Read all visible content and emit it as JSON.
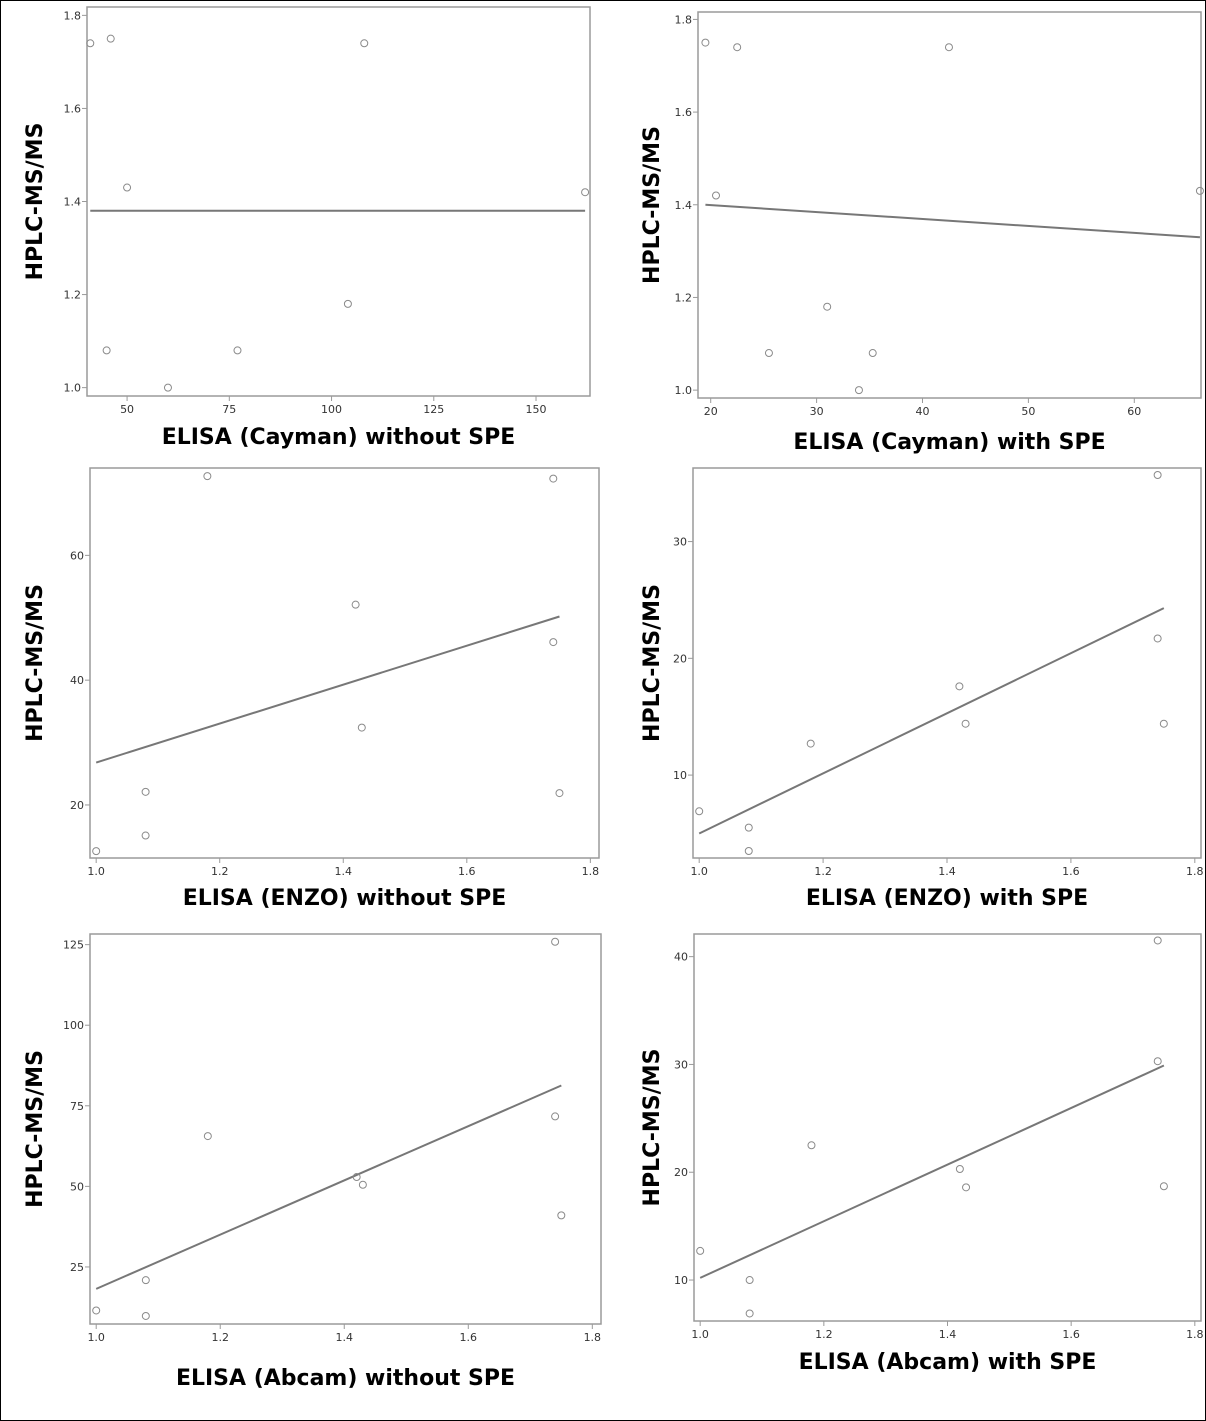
{
  "chart_data": [
    {
      "type": "scatter",
      "xlabel": "ELISA (Cayman) without SPE",
      "ylabel": "HPLC-MS/MS",
      "xlim": [
        40.2,
        163.2
      ],
      "ylim": [
        0.982,
        1.818
      ],
      "xticks": [
        "50",
        "75",
        "100",
        "125",
        "150"
      ],
      "xtick_values": [
        50,
        75,
        100,
        125,
        150
      ],
      "yticks": [
        "1.0",
        "1.2",
        "1.4",
        "1.6",
        "1.8"
      ],
      "ytick_values": [
        1.0,
        1.2,
        1.4,
        1.6,
        1.8
      ],
      "points": [
        [
          41,
          1.74
        ],
        [
          46,
          1.75
        ],
        [
          45,
          1.08
        ],
        [
          50,
          1.43
        ],
        [
          60,
          1.0
        ],
        [
          77,
          1.08
        ],
        [
          104,
          1.18
        ],
        [
          108,
          1.74
        ],
        [
          162,
          1.42
        ]
      ],
      "fit_line": [
        [
          41,
          1.38
        ],
        [
          162,
          1.38
        ]
      ],
      "grid": false
    },
    {
      "type": "scatter",
      "xlabel": "ELISA (Cayman) with SPE",
      "ylabel": "HPLC-MS/MS",
      "xlim": [
        18.8,
        66.3
      ],
      "ylim": [
        0.983,
        1.816
      ],
      "xticks": [
        "20",
        "30",
        "40",
        "50",
        "60"
      ],
      "xtick_values": [
        20,
        30,
        40,
        50,
        60
      ],
      "yticks": [
        "1.0",
        "1.2",
        "1.4",
        "1.6",
        "1.8"
      ],
      "ytick_values": [
        1.0,
        1.2,
        1.4,
        1.6,
        1.8
      ],
      "points": [
        [
          19.5,
          1.75
        ],
        [
          20.5,
          1.42
        ],
        [
          22.5,
          1.74
        ],
        [
          25.5,
          1.08
        ],
        [
          31,
          1.18
        ],
        [
          34,
          1.0
        ],
        [
          35.3,
          1.08
        ],
        [
          42.5,
          1.74
        ],
        [
          66.2,
          1.43
        ]
      ],
      "fit_line": [
        [
          19.5,
          1.4
        ],
        [
          66.2,
          1.33
        ]
      ],
      "grid": false
    },
    {
      "type": "scatter",
      "xlabel": "ELISA (ENZO) without SPE",
      "ylabel": "HPLC-MS/MS",
      "xlim": [
        0.99,
        1.814
      ],
      "ylim": [
        11.5,
        74
      ],
      "xticks": [
        "1.0",
        "1.2",
        "1.4",
        "1.6",
        "1.8"
      ],
      "xtick_values": [
        1.0,
        1.2,
        1.4,
        1.6,
        1.8
      ],
      "yticks": [
        "20",
        "40",
        "60"
      ],
      "ytick_values": [
        20,
        40,
        60
      ],
      "points": [
        [
          1.0,
          12.6
        ],
        [
          1.08,
          22.1
        ],
        [
          1.08,
          15.1
        ],
        [
          1.18,
          72.7
        ],
        [
          1.42,
          52.1
        ],
        [
          1.43,
          32.4
        ],
        [
          1.74,
          72.3
        ],
        [
          1.74,
          46.1
        ],
        [
          1.75,
          21.9
        ]
      ],
      "fit_line": [
        [
          1.0,
          26.8
        ],
        [
          1.75,
          50.2
        ]
      ],
      "grid": false
    },
    {
      "type": "scatter",
      "xlabel": "ELISA (ENZO) with SPE",
      "ylabel": "HPLC-MS/MS",
      "xlim": [
        0.99,
        1.81
      ],
      "ylim": [
        2.9,
        36.3
      ],
      "xticks": [
        "1.0",
        "1.2",
        "1.4",
        "1.6",
        "1.8"
      ],
      "xtick_values": [
        1.0,
        1.2,
        1.4,
        1.6,
        1.8
      ],
      "yticks": [
        "10",
        "20",
        "30"
      ],
      "ytick_values": [
        10,
        20,
        30
      ],
      "points": [
        [
          1.0,
          6.9
        ],
        [
          1.08,
          5.5
        ],
        [
          1.08,
          3.5
        ],
        [
          1.18,
          12.7
        ],
        [
          1.42,
          17.6
        ],
        [
          1.43,
          14.4
        ],
        [
          1.74,
          35.7
        ],
        [
          1.74,
          21.7
        ],
        [
          1.75,
          14.4
        ]
      ],
      "fit_line": [
        [
          1.0,
          5.0
        ],
        [
          1.75,
          24.3
        ]
      ],
      "grid": false
    },
    {
      "type": "scatter",
      "xlabel": "ELISA (Abcam) without SPE",
      "ylabel": "HPLC-MS/MS",
      "xlim": [
        0.99,
        1.814
      ],
      "ylim": [
        7.3,
        128.3
      ],
      "xticks": [
        "1.0",
        "1.2",
        "1.4",
        "1.6",
        "1.8"
      ],
      "xtick_values": [
        1.0,
        1.2,
        1.4,
        1.6,
        1.8
      ],
      "yticks": [
        "25",
        "50",
        "75",
        "100",
        "125"
      ],
      "ytick_values": [
        25,
        50,
        75,
        100,
        125
      ],
      "points": [
        [
          1.0,
          11.5
        ],
        [
          1.08,
          20.9
        ],
        [
          1.08,
          9.8
        ],
        [
          1.18,
          65.6
        ],
        [
          1.42,
          52.9
        ],
        [
          1.43,
          50.5
        ],
        [
          1.74,
          125.9
        ],
        [
          1.74,
          71.7
        ],
        [
          1.75,
          41.0
        ]
      ],
      "fit_line": [
        [
          1.0,
          18.2
        ],
        [
          1.75,
          81.3
        ]
      ],
      "grid": false
    },
    {
      "type": "scatter",
      "xlabel": "ELISA (Abcam) with SPE",
      "ylabel": "HPLC-MS/MS",
      "xlim": [
        0.99,
        1.81
      ],
      "ylim": [
        6.2,
        42.1
      ],
      "xticks": [
        "1.0",
        "1.2",
        "1.4",
        "1.6",
        "1.8"
      ],
      "xtick_values": [
        1.0,
        1.2,
        1.4,
        1.6,
        1.8
      ],
      "yticks": [
        "10",
        "20",
        "30",
        "40"
      ],
      "ytick_values": [
        10,
        20,
        30,
        40
      ],
      "points": [
        [
          1.0,
          12.7
        ],
        [
          1.08,
          10.0
        ],
        [
          1.08,
          6.9
        ],
        [
          1.18,
          22.5
        ],
        [
          1.42,
          20.3
        ],
        [
          1.43,
          18.6
        ],
        [
          1.74,
          41.5
        ],
        [
          1.74,
          30.3
        ],
        [
          1.75,
          18.7
        ]
      ],
      "fit_line": [
        [
          1.0,
          10.2
        ],
        [
          1.75,
          29.9
        ]
      ],
      "grid": false
    }
  ],
  "colors": {
    "frame": "#9a9a9a",
    "points": "#8a8a8a",
    "fit_line": "#777777",
    "text": "#000000"
  }
}
